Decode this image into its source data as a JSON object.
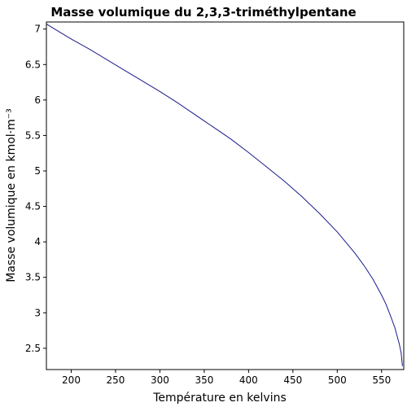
{
  "chart_data": {
    "type": "line",
    "title": "Masse volumique du 2,3,3-triméthylpentane",
    "xlabel": "Température en kelvins",
    "ylabel": "Masse volumique en kmol·m⁻³",
    "xlim": [
      172,
      575
    ],
    "ylim": [
      2.2,
      7.1
    ],
    "xticks": [
      "200",
      "250",
      "300",
      "350",
      "400",
      "450",
      "500",
      "550"
    ],
    "yticks": [
      "2.5",
      "3",
      "3.5",
      "4",
      "4.5",
      "5",
      "5.5",
      "6",
      "6.5",
      "7"
    ],
    "grid": false,
    "line_color": "#1a1a8c",
    "series": [
      {
        "x": [
          172.2,
          180,
          200,
          220,
          240,
          260,
          280,
          300,
          320,
          340,
          360,
          380,
          400,
          420,
          440,
          460,
          480,
          500,
          520,
          530,
          540,
          550,
          555,
          560,
          565,
          570,
          572,
          573.5
        ],
        "y": [
          7.07,
          7.01,
          6.86,
          6.72,
          6.57,
          6.42,
          6.27,
          6.12,
          5.96,
          5.79,
          5.62,
          5.45,
          5.26,
          5.06,
          4.86,
          4.64,
          4.4,
          4.14,
          3.84,
          3.67,
          3.48,
          3.25,
          3.12,
          2.96,
          2.79,
          2.56,
          2.44,
          2.25
        ]
      }
    ]
  }
}
